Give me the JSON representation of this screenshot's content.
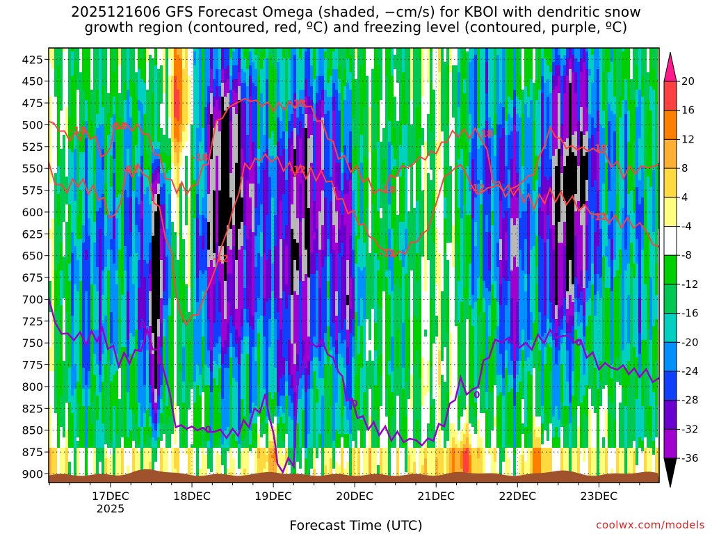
{
  "title": "2025121606 GFS Forecast Omega (shaded, −cm/s) for KBOI with dendritic snow\ngrowth region (contoured, red, ºC) and freezing level (contoured, purple, ºC)",
  "xlabel": "Forecast Time (UTC)",
  "credit": "coolwx.com/models",
  "chart_data": {
    "type": "heatmap",
    "title": "2025121606 GFS Forecast Omega (shaded, −cm/s) for KBOI with dendritic snow growth region (contoured, red, ºC) and freezing level (contoured, purple, ºC)",
    "xlabel": "Forecast Time (UTC)",
    "ylabel": "",
    "x_ticks": [
      "17DEC",
      "18DEC",
      "19DEC",
      "20DEC",
      "21DEC",
      "22DEC",
      "23DEC"
    ],
    "x_subtick": "2025",
    "xlim_days_from_17DEC": [
      -0.76,
      6.74
    ],
    "y_ticks": [
      425,
      450,
      475,
      500,
      525,
      550,
      575,
      600,
      625,
      650,
      675,
      700,
      725,
      750,
      775,
      800,
      825,
      850,
      875,
      900
    ],
    "ylim": [
      412,
      910
    ],
    "colorbar": {
      "levels": [
        20,
        16,
        12,
        8,
        4,
        -4,
        -8,
        -12,
        -16,
        -20,
        -24,
        -28,
        -32,
        -36
      ],
      "colors": [
        "#ff1a8c",
        "#ff4040",
        "#ff8000",
        "#ffb030",
        "#ffd940",
        "#ffff80",
        "#ffffff",
        "#00d000",
        "#00c850",
        "#00d0c0",
        "#0090ff",
        "#1040ff",
        "#6a00d0",
        "#a000d0",
        "#b8b8b8",
        "#000000"
      ]
    },
    "colors": {
      "dendritic_contour": "#ff4040",
      "freezing_contour": "#9900cc",
      "terrain": "#a0522d",
      "credit": "#dd2222"
    },
    "dendritic_labels": [
      "-18",
      "-12"
    ],
    "freezing_label": "0",
    "grid": "dotted"
  }
}
